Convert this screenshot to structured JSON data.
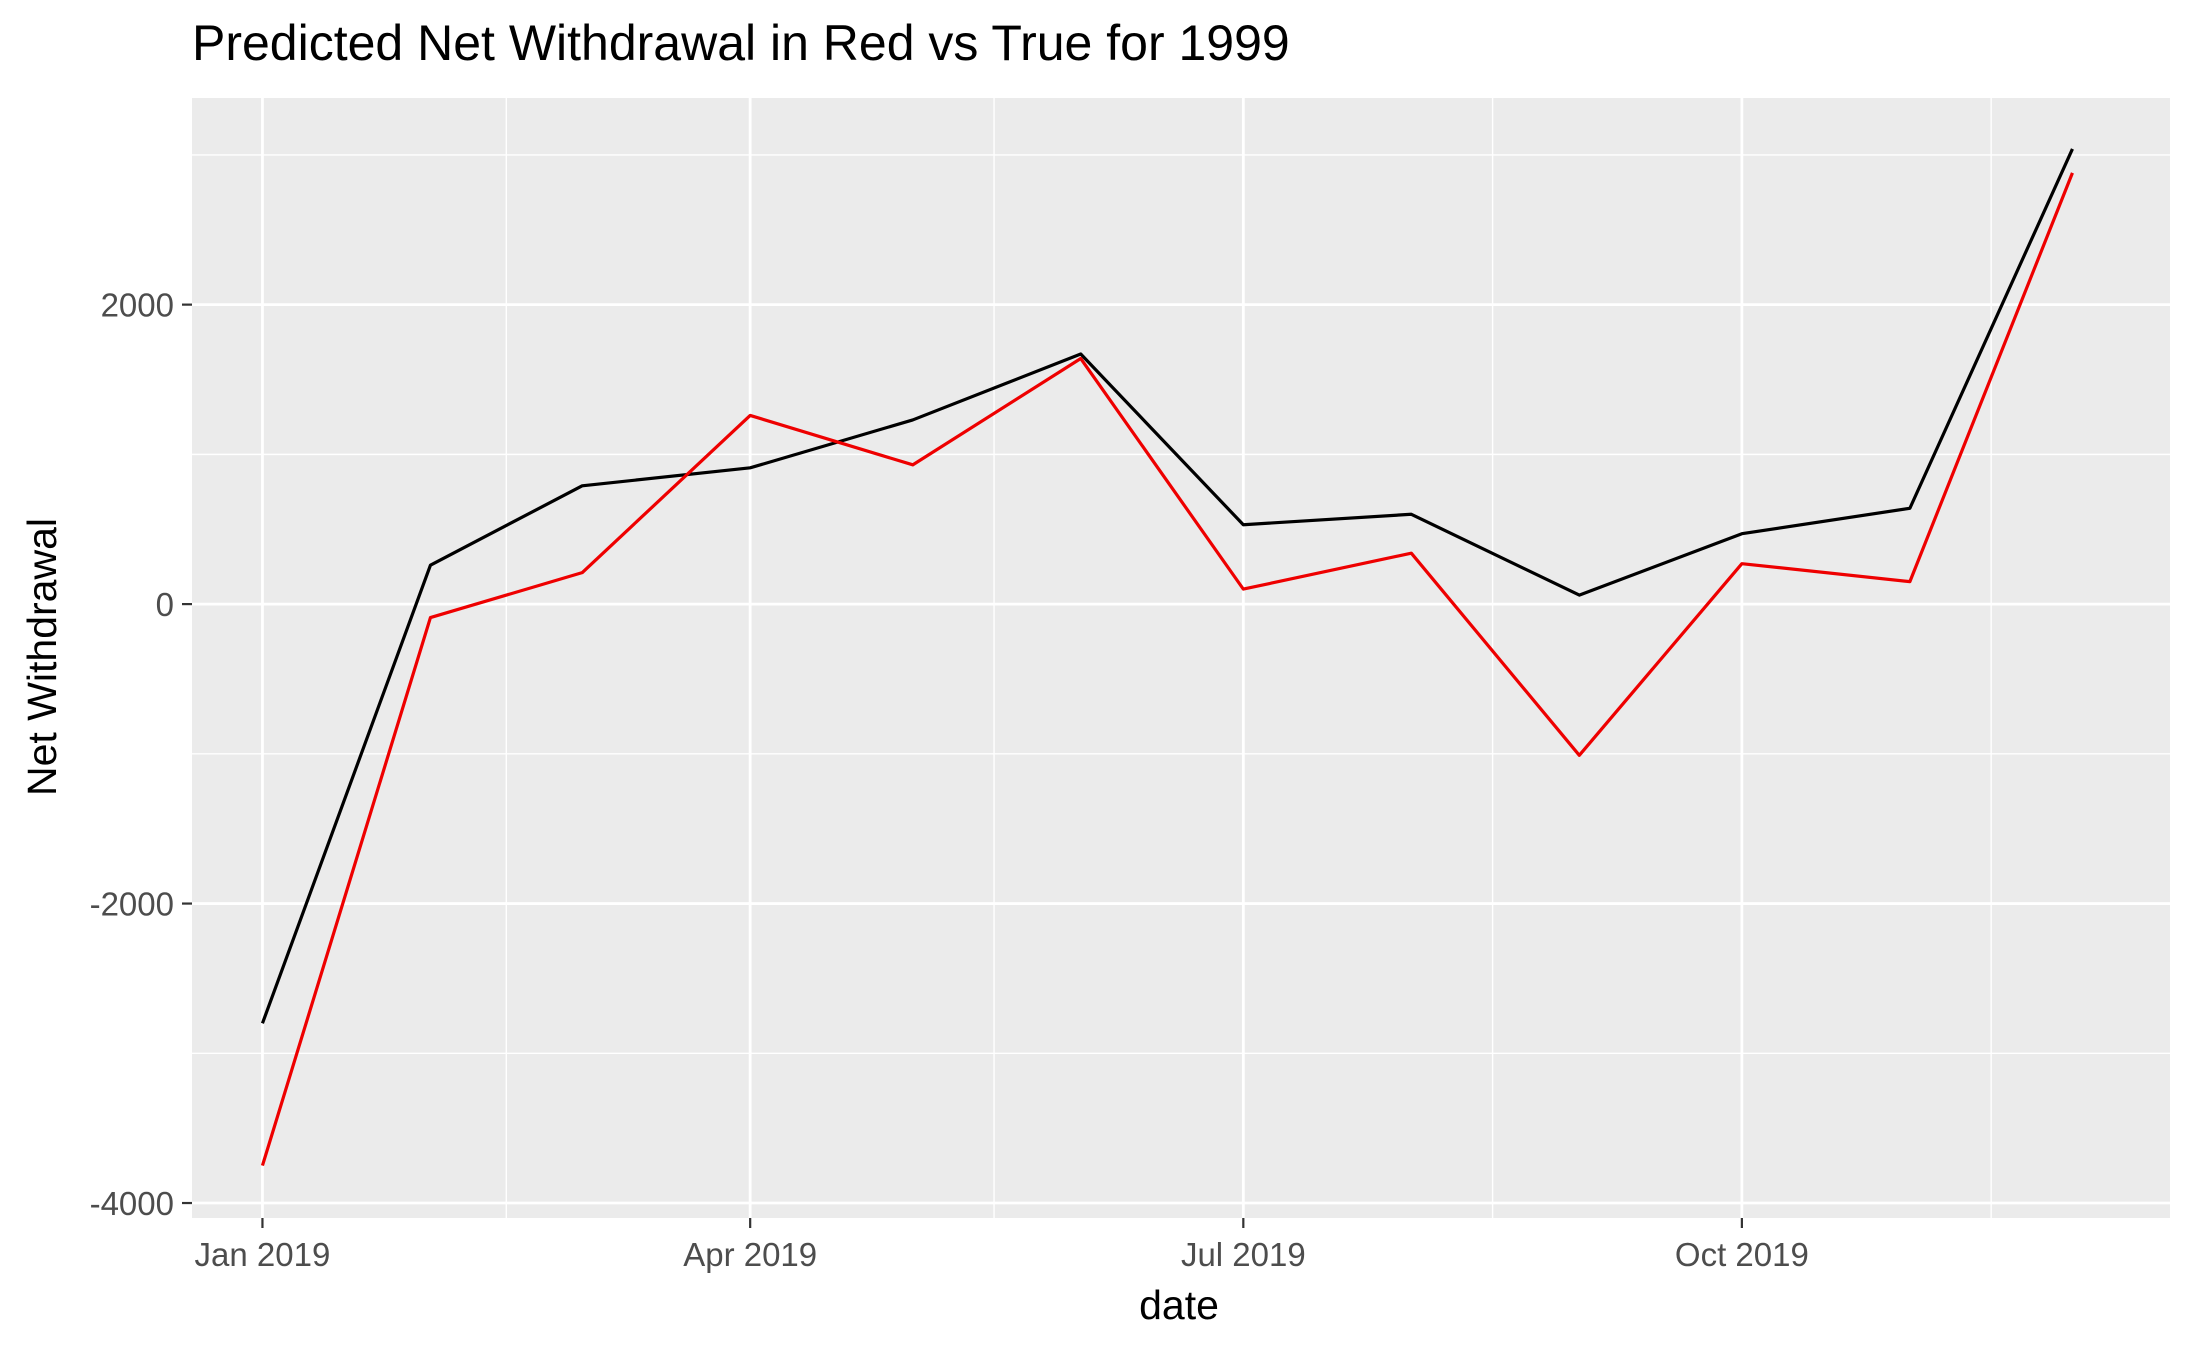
{
  "chart_data": {
    "type": "line",
    "title": "Predicted Net Withdrawal in Red vs True for 1999",
    "xlabel": "date",
    "ylabel": "Net Withdrawal",
    "x": [
      "2019-01-01",
      "2019-02-01",
      "2019-03-01",
      "2019-04-01",
      "2019-05-01",
      "2019-06-01",
      "2019-07-01",
      "2019-08-01",
      "2019-09-01",
      "2019-10-01",
      "2019-11-01",
      "2019-12-01"
    ],
    "x_ticks": [
      {
        "date": "2019-01-01",
        "label": "Jan 2019"
      },
      {
        "date": "2019-04-01",
        "label": "Apr 2019"
      },
      {
        "date": "2019-07-01",
        "label": "Jul 2019"
      },
      {
        "date": "2019-10-01",
        "label": "Oct 2019"
      }
    ],
    "x_minor_ticks": [
      "2019-02-15",
      "2019-05-16",
      "2019-08-16",
      "2019-11-16"
    ],
    "xlim": [
      "2018-12-19",
      "2019-12-19"
    ],
    "y_ticks": [
      {
        "value": 2000,
        "label": "2000"
      },
      {
        "value": 0,
        "label": "0"
      },
      {
        "value": -2000,
        "label": "-2000"
      },
      {
        "value": -4000,
        "label": "-4000"
      }
    ],
    "y_minor_ticks": [
      3000,
      1000,
      -1000,
      -3000
    ],
    "ylim": [
      -4100,
      3380
    ],
    "grid": true,
    "series": [
      {
        "color": "#000000",
        "values": [
          -2800,
          260,
          790,
          910,
          1230,
          1670,
          530,
          600,
          60,
          470,
          640,
          3040
        ]
      },
      {
        "color": "#ee0000",
        "values": [
          -3750,
          -90,
          210,
          1260,
          930,
          1640,
          100,
          340,
          -1010,
          270,
          150,
          2880
        ]
      }
    ]
  },
  "style": {
    "panel_background": "#ebebeb",
    "grid_major_color": "#ffffff",
    "grid_minor_color": "#ffffff",
    "tick_color": "#333333"
  }
}
